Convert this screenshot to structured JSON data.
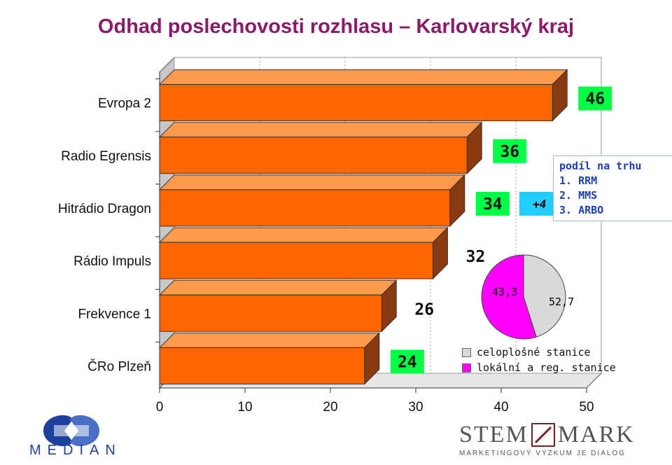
{
  "title": "Odhad poslechovosti rozhlasu – Karlovarský kraj",
  "colors": {
    "bar_front": "#ff6600",
    "bar_top": "#ff9a4d",
    "bar_side": "#8a3a10",
    "label_green": "#00ff44",
    "label_cyan": "#22ccff",
    "pie_celoplosne": "#d9d9d9",
    "pie_lokalni": "#ff00ff",
    "title": "#8b1a6b",
    "box_text": "#1d3fb0"
  },
  "chart_data": {
    "type": "bar",
    "orientation": "horizontal",
    "style": "3d",
    "categories": [
      "Evropa 2",
      "Radio Egrensis",
      "Hitrádio Dragon",
      "Rádio Impuls",
      "Frekvence 1",
      "ČRo Plzeň"
    ],
    "values": [
      46,
      36,
      34,
      32,
      26,
      24
    ],
    "value_labels": [
      "46",
      "36",
      "34",
      "32",
      "26",
      "24"
    ],
    "label_colors": [
      "#00ff44",
      "#00ff44",
      "#00ff44",
      null,
      null,
      "#00ff44"
    ],
    "extra_labels": [
      {
        "category": "Hitrádio Dragon",
        "text": "+4"
      }
    ],
    "xlim": [
      0,
      50
    ],
    "x_ticks": [
      "0",
      "10",
      "20",
      "30",
      "40",
      "50"
    ],
    "grid": true,
    "pie": {
      "labels": [
        "43,3",
        "52,7"
      ],
      "values": [
        43.3,
        52.7
      ],
      "legend": [
        "celoplošné stanice",
        "lokální a reg. stanice"
      ]
    }
  },
  "info_box": {
    "heading": "podíl na trhu",
    "lines": [
      "1. RRM",
      "2. MMS",
      "3. ARBO"
    ]
  },
  "logos": {
    "left": "MEDIAN",
    "right_main_left": "STEM",
    "right_main_right": "MARK",
    "right_sub": "MARKETINGOVÝ VÝZKUM JE DIALOG"
  }
}
